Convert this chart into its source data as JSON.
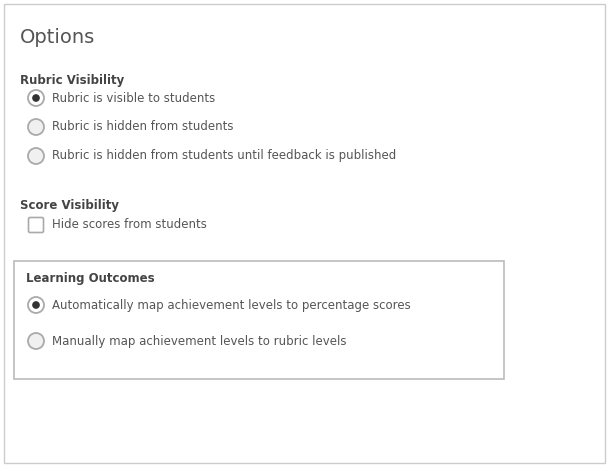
{
  "title": "Options",
  "title_fontsize": 14,
  "title_color": "#555555",
  "background_color": "#ffffff",
  "section1_label": "Rubric Visibility",
  "section2_label": "Score Visibility",
  "section3_label": "Learning Outcomes",
  "radio_options_rubric": [
    "Rubric is visible to students",
    "Rubric is hidden from students",
    "Rubric is hidden from students until feedback is published"
  ],
  "radio_selected_rubric": 0,
  "checkbox_options_score": [
    "Hide scores from students"
  ],
  "radio_options_outcomes": [
    "Automatically map achievement levels to percentage scores",
    "Manually map achievement levels to rubric levels"
  ],
  "radio_selected_outcomes": 0,
  "text_color": "#555555",
  "label_color": "#444444",
  "radio_border_color": "#aaaaaa",
  "radio_fill_color": "#333333",
  "radio_unselected_fill": "#f0f0f0",
  "checkbox_border_color": "#aaaaaa",
  "section_border_color": "#bbbbbb",
  "section_bg_color": "#ffffff",
  "font_size_section": 8.5,
  "font_size_option": 8.5,
  "outer_border_color": "#bbbbbb",
  "fig_border_color": "#cccccc"
}
